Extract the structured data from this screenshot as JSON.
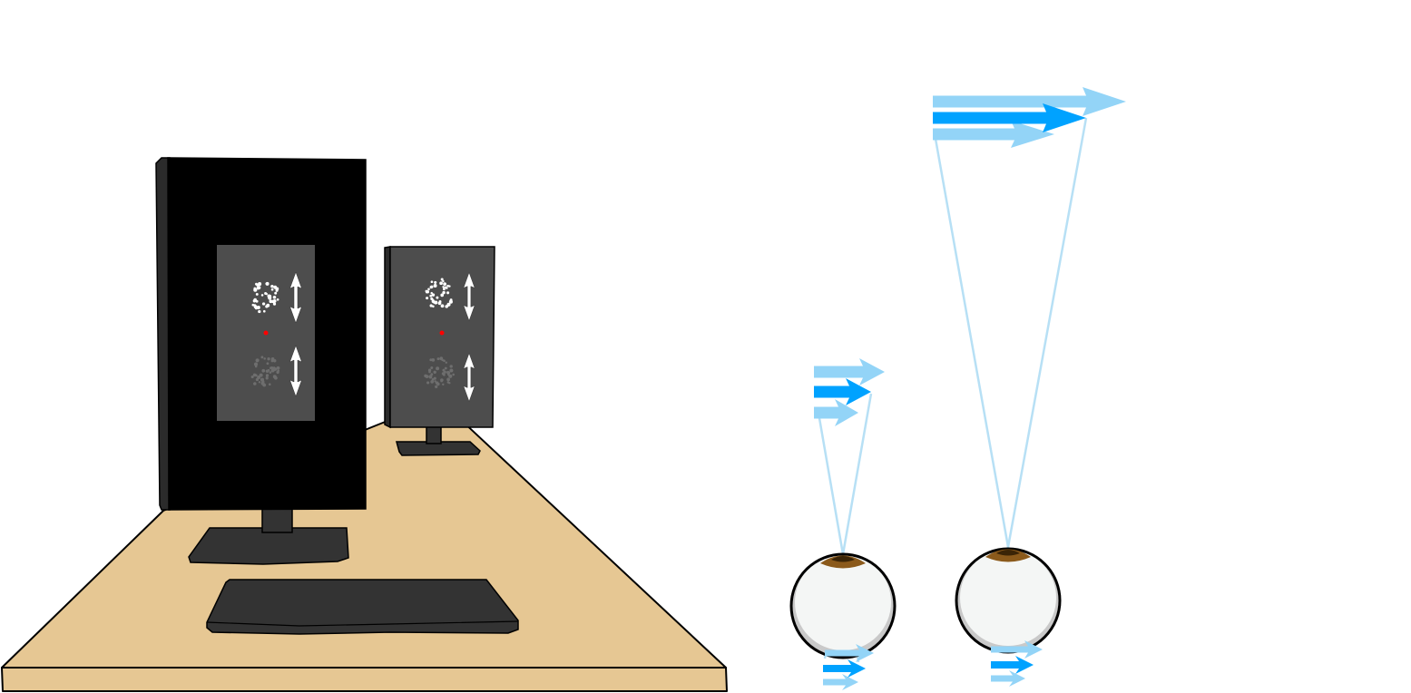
{
  "colors": {
    "background": "#ffffff",
    "desk_top": "#e6c793",
    "desk_edge": "#e6c793",
    "outline": "#000000",
    "monitor_bezel": "#000000",
    "monitor_side": "#2b2b2b",
    "monitor_stand": "#333333",
    "stimulus_panel": "#4d4d4d",
    "dots_bright": "#ffffff",
    "dots_dim": "#6e6e6e",
    "motion_arrow": "#ffffff",
    "fixation_point": "#ff0000",
    "keyboard": "#333333",
    "ray": "#b7e0f5",
    "arrow_light": "#93d4f7",
    "arrow_dark": "#00a2ff",
    "eye_sclera": "#f4f6f5",
    "eye_shadow": "#c9c9c9",
    "iris": "#8b5a1b"
  },
  "icons": {
    "motion_arrow": "double-headed-vertical-arrow",
    "fixation": "red-dot",
    "object_arrows": "right-pointing-arrows"
  }
}
